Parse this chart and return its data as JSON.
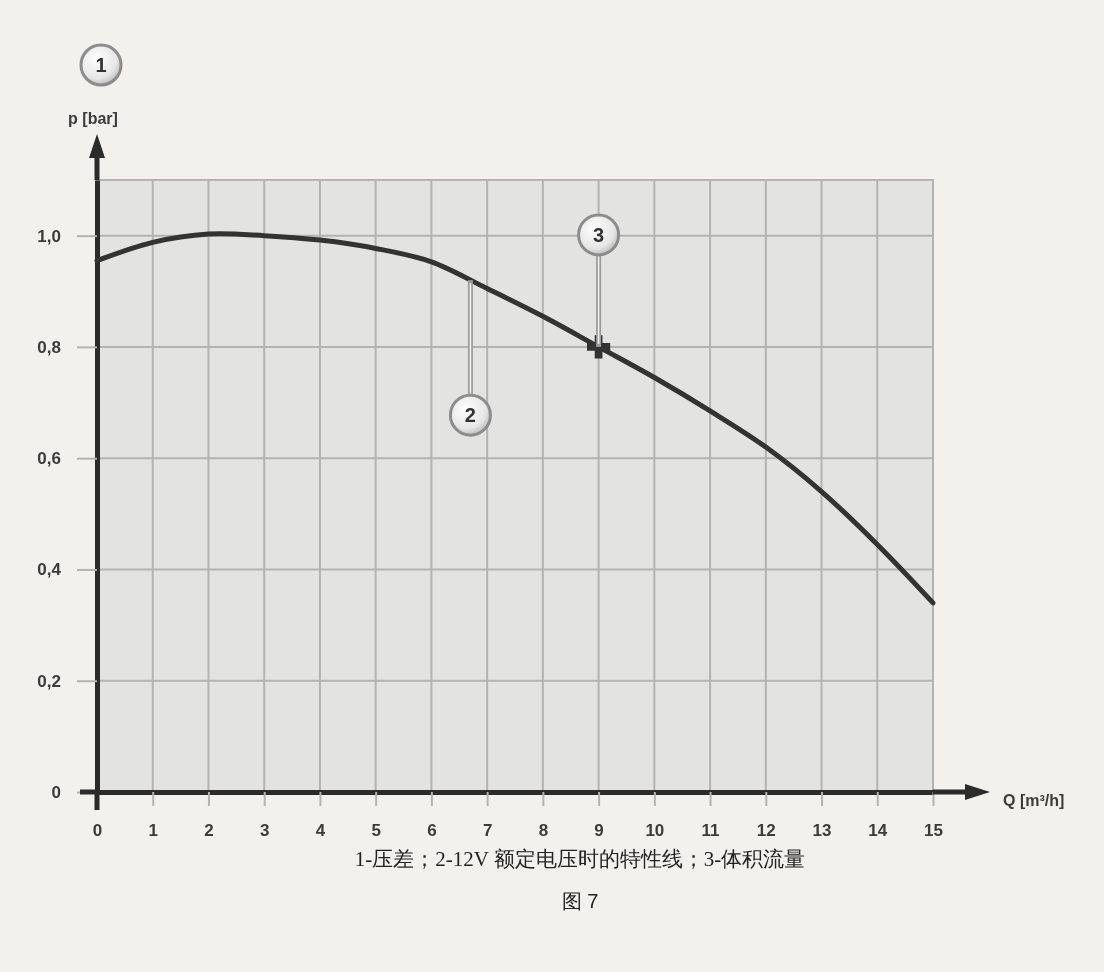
{
  "chart_data": {
    "type": "line",
    "x": [
      0,
      1,
      2,
      3,
      4,
      5,
      6,
      7,
      8,
      9,
      10,
      11,
      12,
      13,
      14,
      15
    ],
    "series": [
      {
        "color": "#333333",
        "values": [
          0.955,
          0.988,
          1.003,
          1.0,
          0.992,
          0.977,
          0.953,
          0.905,
          0.855,
          0.8,
          0.745,
          0.685,
          0.62,
          0.54,
          0.445,
          0.34
        ]
      },
      {
        "type": "scatter",
        "x": [
          9
        ],
        "values": [
          0.8
        ],
        "color": "#333333",
        "marker": "cross"
      }
    ],
    "xlim": [
      0,
      15
    ],
    "ylim": [
      0,
      1.1
    ],
    "xticks": [
      0,
      1,
      2,
      3,
      4,
      5,
      6,
      7,
      8,
      9,
      10,
      11,
      12,
      13,
      14,
      15
    ],
    "yticks": [
      0,
      {
        "value": 0.2,
        "label": "0,2"
      },
      {
        "value": 0.4,
        "label": "0,4"
      },
      {
        "value": 0.6,
        "label": "0,6"
      },
      {
        "value": 0.8,
        "label": "0,8"
      },
      {
        "value": 1.0,
        "label": "1,0"
      }
    ],
    "xlabel": "Q [m³/h]",
    "ylabel": "p [bar]",
    "grid": true,
    "annotations": [
      "1",
      {
        "text": "2",
        "x": 6.7,
        "y": 0.92
      },
      {
        "text": "3",
        "x": 9,
        "y": 0.8
      },
      "1-压差；2-12V 额定电压时的特性线；3-体积流量",
      "图 7"
    ]
  }
}
